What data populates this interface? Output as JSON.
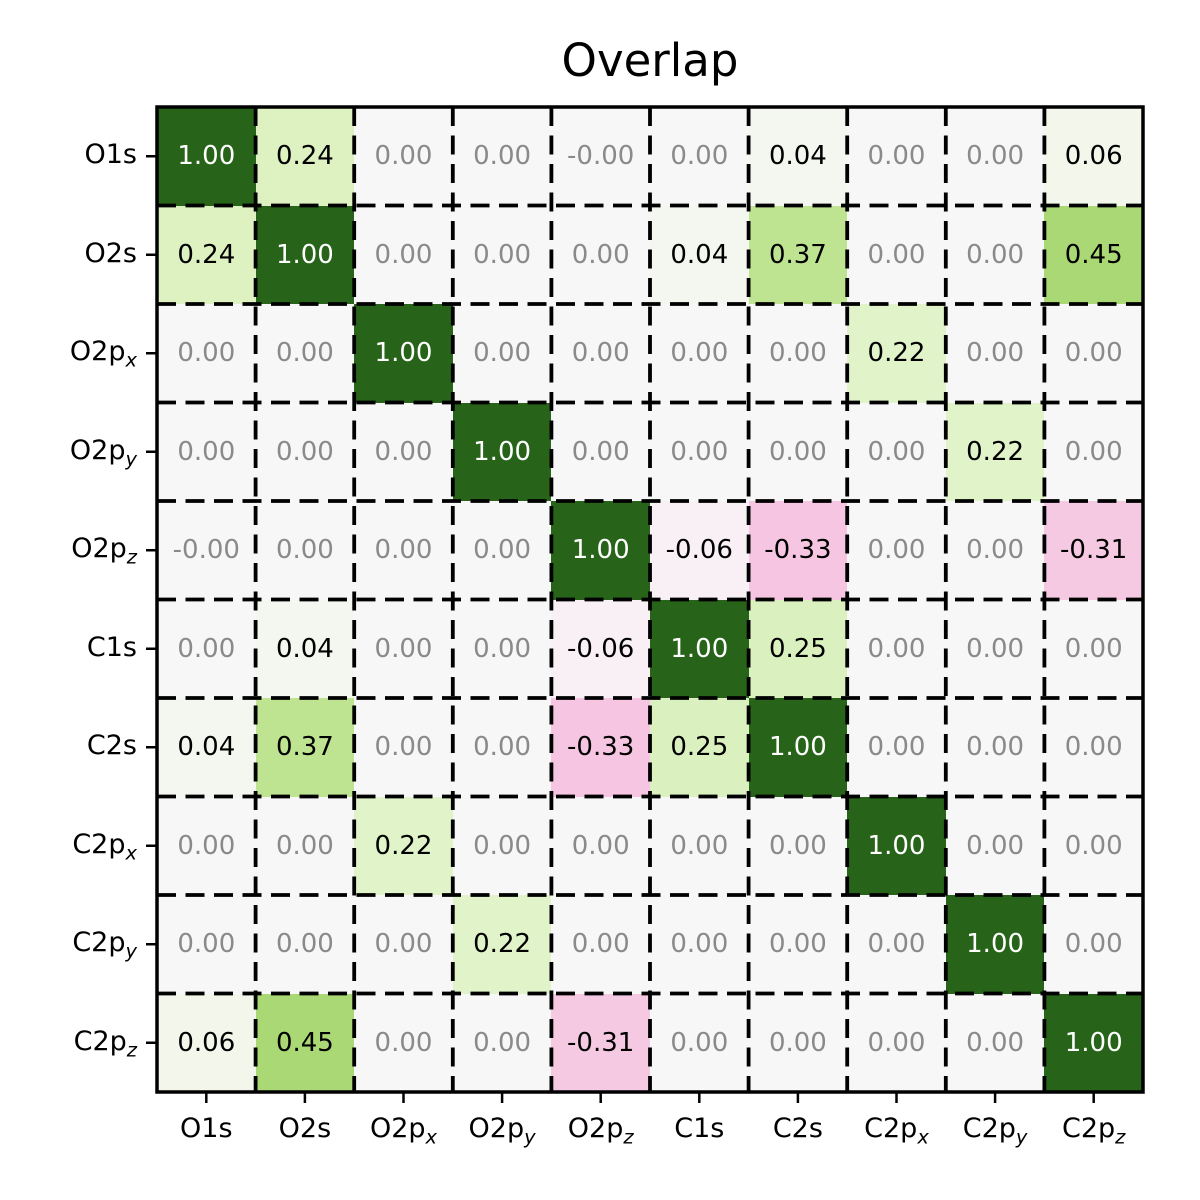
{
  "chart_data": {
    "type": "heatmap",
    "title": "Overlap",
    "row_labels": [
      "O1s",
      "O2s",
      "O2p_x",
      "O2p_y",
      "O2p_z",
      "C1s",
      "C2s",
      "C2p_x",
      "C2p_y",
      "C2p_z"
    ],
    "col_labels": [
      "O1s",
      "O2s",
      "O2p_x",
      "O2p_y",
      "O2p_z",
      "C1s",
      "C2s",
      "C2p_x",
      "C2p_y",
      "C2p_z"
    ],
    "cells": [
      [
        "1.00",
        "0.24",
        "0.00",
        "0.00",
        "-0.00",
        "0.00",
        "0.04",
        "0.00",
        "0.00",
        "0.06"
      ],
      [
        "0.24",
        "1.00",
        "0.00",
        "0.00",
        "0.00",
        "0.04",
        "0.37",
        "0.00",
        "0.00",
        "0.45"
      ],
      [
        "0.00",
        "0.00",
        "1.00",
        "0.00",
        "0.00",
        "0.00",
        "0.00",
        "0.22",
        "0.00",
        "0.00"
      ],
      [
        "0.00",
        "0.00",
        "0.00",
        "1.00",
        "0.00",
        "0.00",
        "0.00",
        "0.00",
        "0.22",
        "0.00"
      ],
      [
        "-0.00",
        "0.00",
        "0.00",
        "0.00",
        "1.00",
        "-0.06",
        "-0.33",
        "0.00",
        "0.00",
        "-0.31"
      ],
      [
        "0.00",
        "0.04",
        "0.00",
        "0.00",
        "-0.06",
        "1.00",
        "0.25",
        "0.00",
        "0.00",
        "0.00"
      ],
      [
        "0.04",
        "0.37",
        "0.00",
        "0.00",
        "-0.33",
        "0.25",
        "1.00",
        "0.00",
        "0.00",
        "0.00"
      ],
      [
        "0.00",
        "0.00",
        "0.22",
        "0.00",
        "0.00",
        "0.00",
        "0.00",
        "1.00",
        "0.00",
        "0.00"
      ],
      [
        "0.00",
        "0.00",
        "0.00",
        "0.22",
        "0.00",
        "0.00",
        "0.00",
        "0.00",
        "1.00",
        "0.00"
      ],
      [
        "0.06",
        "0.45",
        "0.00",
        "0.00",
        "-0.31",
        "0.00",
        "0.00",
        "0.00",
        "0.00",
        "1.00"
      ]
    ],
    "colormap": "PiYG",
    "vmin": -1,
    "vmax": 1,
    "legend_position": "none",
    "grid_on": true,
    "value_colors": {
      "1.00": "#276419",
      "0.45": "#aad875",
      "0.37": "#bfe491",
      "0.25": "#daf0be",
      "0.24": "#ddf1c1",
      "0.22": "#e1f3c9",
      "0.06": "#f2f6eb",
      "0.04": "#f4f7ef",
      "0.00": "#f7f7f7",
      "-0.00": "#f7f7f7",
      "-0.06": "#f9f0f5",
      "-0.31": "#f6c9e3",
      "-0.33": "#f5c5e1"
    },
    "text_colors": {
      "diagonal_one": "#ffffff",
      "zero": "#8a8a8a",
      "nonzero": "#000000"
    },
    "frame": {
      "border_color": "#000000",
      "gridline_color": "#000000",
      "gridline_style": "dashed",
      "background": "#ffffff"
    }
  }
}
